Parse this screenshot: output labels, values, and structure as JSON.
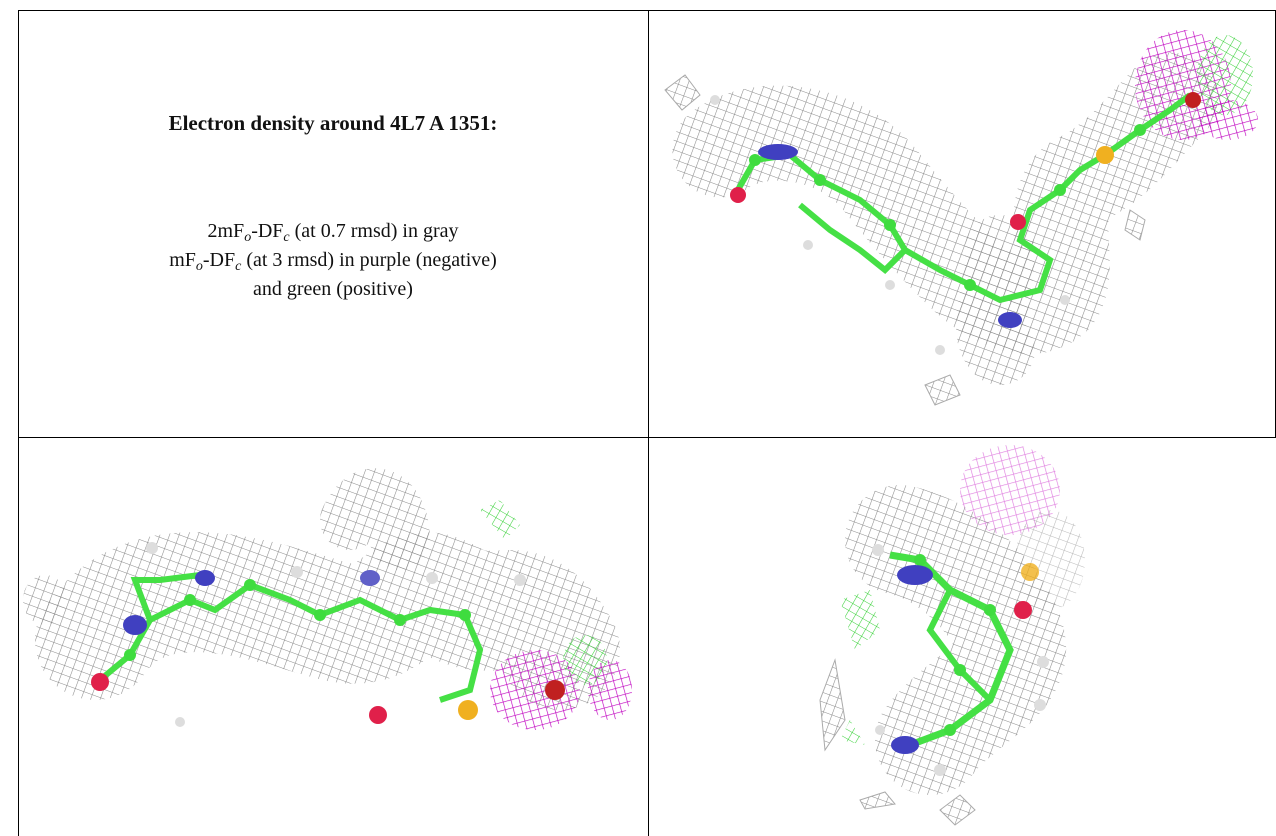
{
  "caption": {
    "title": "Electron density around 4L7 A 1351:",
    "lines": [
      [
        "2mF",
        "o",
        "-DF",
        "c",
        " (at 0.7 rmsd) in gray"
      ],
      [
        "mF",
        "o",
        "-DF",
        "c",
        " (at 3 rmsd) in purple (negative)"
      ],
      [
        "and green (positive)"
      ]
    ]
  }
}
